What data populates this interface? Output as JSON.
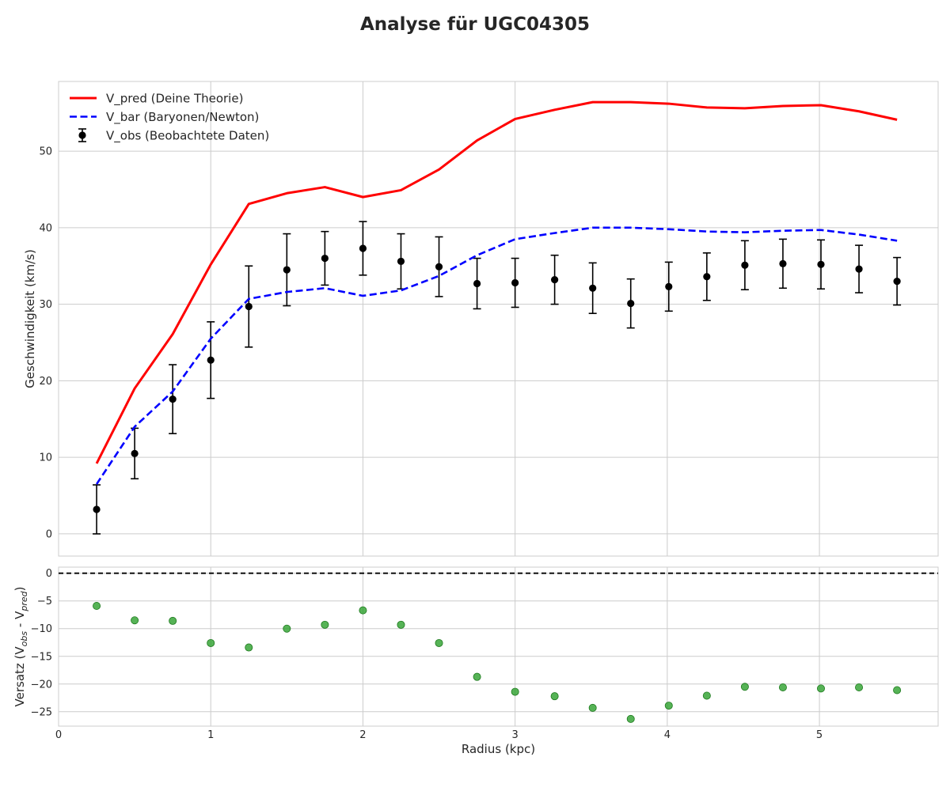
{
  "title": "Analyse für UGC04305",
  "chart_data": [
    {
      "type": "line",
      "panel": "top",
      "ylabel": "Geschwindigkeit (km/s)",
      "xlim": [
        0,
        5.78
      ],
      "ylim": [
        -2.9,
        59.1
      ],
      "xticks": [
        0,
        1,
        2,
        3,
        4,
        5
      ],
      "yticks": [
        0,
        10,
        20,
        30,
        40,
        50
      ],
      "grid": true,
      "legend_position": "top-left",
      "x": [
        0.25,
        0.5,
        0.75,
        1.0,
        1.25,
        1.5,
        1.75,
        2.0,
        2.25,
        2.5,
        2.75,
        3.0,
        3.26,
        3.51,
        3.76,
        4.01,
        4.26,
        4.51,
        4.76,
        5.01,
        5.26,
        5.51
      ],
      "series": [
        {
          "name": "V_pred (Deine Theorie)",
          "style": "solid-line",
          "color": "#ff0000",
          "values": [
            9.2,
            19.0,
            26.1,
            35.2,
            43.1,
            44.5,
            45.3,
            44.0,
            44.9,
            47.6,
            51.4,
            54.2,
            55.4,
            56.4,
            56.4,
            56.2,
            55.7,
            55.6,
            55.9,
            56.0,
            55.2,
            54.1
          ]
        },
        {
          "name": "V_bar (Baryonen/Newton)",
          "style": "dashed-line",
          "color": "#0000ff",
          "values": [
            6.5,
            14.0,
            18.6,
            25.5,
            30.7,
            31.6,
            32.1,
            31.1,
            31.8,
            33.7,
            36.4,
            38.5,
            39.3,
            40.0,
            40.0,
            39.8,
            39.5,
            39.4,
            39.6,
            39.7,
            39.1,
            38.3
          ]
        },
        {
          "name": "V_obs (Beobachtete Daten)",
          "style": "errorbar",
          "color": "#000000",
          "values": [
            3.2,
            10.5,
            17.6,
            22.7,
            29.7,
            34.5,
            36.0,
            37.3,
            35.6,
            34.9,
            32.7,
            32.8,
            33.2,
            32.1,
            30.1,
            32.3,
            33.6,
            35.1,
            35.3,
            35.2,
            34.6,
            33.0
          ],
          "errors": [
            3.2,
            3.3,
            4.5,
            5.0,
            5.3,
            4.7,
            3.5,
            3.5,
            3.6,
            3.9,
            3.3,
            3.2,
            3.2,
            3.3,
            3.2,
            3.2,
            3.1,
            3.2,
            3.2,
            3.2,
            3.1,
            3.1
          ]
        }
      ]
    },
    {
      "type": "scatter",
      "panel": "bottom",
      "xlabel": "Radius (kpc)",
      "ylabel": "Versatz (V_obs - V_pred)",
      "xlim": [
        0,
        5.78
      ],
      "ylim": [
        -27.6,
        1.1
      ],
      "xticks": [
        0,
        1,
        2,
        3,
        4,
        5
      ],
      "yticks": [
        0,
        -5,
        -10,
        -15,
        -20,
        -25
      ],
      "grid": true,
      "reference_line": 0,
      "color": "#2ca02c",
      "x": [
        0.25,
        0.5,
        0.75,
        1.0,
        1.25,
        1.5,
        1.75,
        2.0,
        2.25,
        2.5,
        2.75,
        3.0,
        3.26,
        3.51,
        3.76,
        4.01,
        4.26,
        4.51,
        4.76,
        5.01,
        5.26,
        5.51
      ],
      "values": [
        -5.9,
        -8.5,
        -8.6,
        -12.6,
        -13.4,
        -10.0,
        -9.3,
        -6.7,
        -9.3,
        -12.6,
        -18.7,
        -21.4,
        -22.2,
        -24.3,
        -26.3,
        -23.9,
        -22.1,
        -20.5,
        -20.6,
        -20.8,
        -20.6,
        -21.1
      ]
    }
  ]
}
